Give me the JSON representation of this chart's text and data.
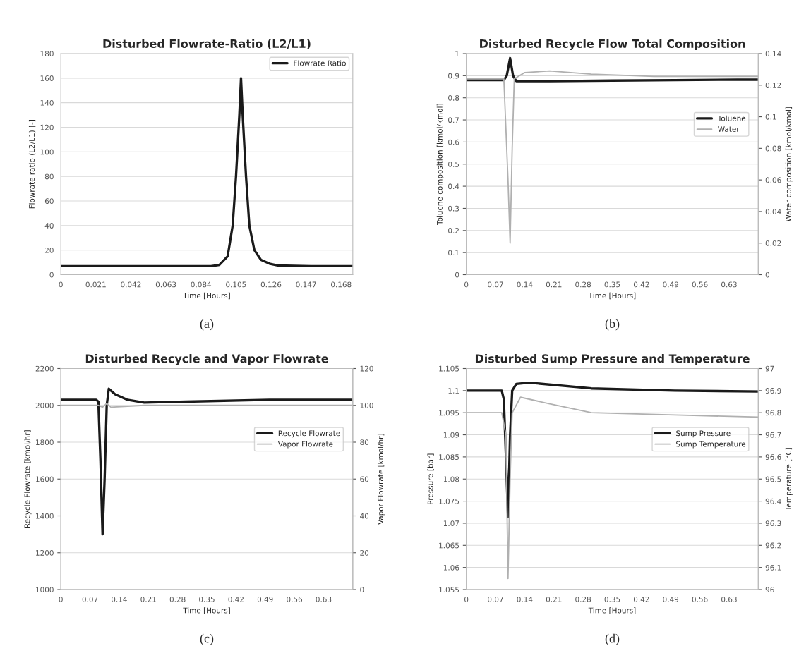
{
  "chart_data": [
    {
      "type": "line",
      "title": "Disturbed Flowrate-Ratio (L2/L1)",
      "xlabel": "Time [Hours]",
      "ylabel": "Flowrate ratio (L2/L1) [-]",
      "xlim": [
        0,
        0.175
      ],
      "xticks": [
        0,
        0.021,
        0.042,
        0.063,
        0.084,
        0.105,
        0.126,
        0.147,
        0.168
      ],
      "ylim": [
        0,
        180
      ],
      "yticks": [
        0,
        20,
        40,
        60,
        80,
        100,
        120,
        140,
        160,
        180
      ],
      "grid": "y",
      "legend": "top right",
      "annotations": [
        "(a)"
      ],
      "series": [
        {
          "name": "Flowrate Ratio",
          "color": "#1a1a1a",
          "x": [
            0,
            0.02,
            0.04,
            0.06,
            0.08,
            0.09,
            0.095,
            0.1,
            0.103,
            0.105,
            0.107,
            0.108,
            0.109,
            0.111,
            0.113,
            0.116,
            0.12,
            0.125,
            0.13,
            0.15,
            0.175
          ],
          "values": [
            7,
            7,
            7,
            7,
            7,
            7,
            8,
            15,
            40,
            80,
            130,
            160,
            130,
            80,
            40,
            20,
            12,
            9,
            7.5,
            7,
            7
          ]
        }
      ]
    },
    {
      "type": "line",
      "title": "Disturbed Recycle Flow Total Composition",
      "xlabel": "Time [Hours]",
      "ylabel": "Toluene composition [kmol/kmol]",
      "y2label": "Water composition [kmol/kmol]",
      "xlim": [
        0,
        0.7
      ],
      "xticks": [
        0,
        0.07,
        0.14,
        0.21,
        0.28,
        0.35,
        0.42,
        0.49,
        0.56,
        0.63
      ],
      "ylim": [
        0,
        1
      ],
      "yticks": [
        0,
        0.1,
        0.2,
        0.3,
        0.4,
        0.5,
        0.6,
        0.7,
        0.8,
        0.9,
        1
      ],
      "y2lim": [
        0,
        0.14
      ],
      "y2ticks": [
        0,
        0.02,
        0.04,
        0.06,
        0.08,
        0.1,
        0.12,
        0.14
      ],
      "grid": "y",
      "legend": "right",
      "annotations": [
        "(b)"
      ],
      "series": [
        {
          "name": "Toluene",
          "color": "#1a1a1a",
          "x": [
            0,
            0.09,
            0.097,
            0.105,
            0.112,
            0.12,
            0.2,
            0.35,
            0.5,
            0.65,
            0.7
          ],
          "values": [
            0.88,
            0.88,
            0.9,
            0.98,
            0.9,
            0.875,
            0.875,
            0.878,
            0.88,
            0.882,
            0.882
          ]
        },
        {
          "name": "Water",
          "color": "#b0b0b0",
          "axis": "y2",
          "x": [
            0,
            0.09,
            0.1,
            0.105,
            0.11,
            0.115,
            0.14,
            0.2,
            0.3,
            0.45,
            0.7
          ],
          "values": [
            0.124,
            0.124,
            0.06,
            0.02,
            0.08,
            0.124,
            0.128,
            0.129,
            0.127,
            0.1255,
            0.1255
          ]
        }
      ]
    },
    {
      "type": "line",
      "title": "Disturbed Recycle and Vapor Flowrate",
      "xlabel": "Time [Hours]",
      "ylabel": "Recycle Flowrate [kmol/hr]",
      "y2label": "Vapor Flowrate [kmol/hr]",
      "xlim": [
        0,
        0.7
      ],
      "xticks": [
        0,
        0.07,
        0.14,
        0.21,
        0.28,
        0.35,
        0.42,
        0.49,
        0.56,
        0.63
      ],
      "ylim": [
        1000,
        2200
      ],
      "yticks": [
        1000,
        1200,
        1400,
        1600,
        1800,
        2000,
        2200
      ],
      "y2lim": [
        0,
        120
      ],
      "y2ticks": [
        0,
        20,
        40,
        60,
        80,
        100,
        120
      ],
      "grid": "y",
      "legend": "right",
      "annotations": [
        "(c)"
      ],
      "series": [
        {
          "name": "Recycle Flowrate",
          "color": "#1a1a1a",
          "x": [
            0,
            0.085,
            0.09,
            0.095,
            0.1,
            0.105,
            0.11,
            0.115,
            0.13,
            0.16,
            0.2,
            0.3,
            0.5,
            0.7
          ],
          "values": [
            2030,
            2030,
            2020,
            1700,
            1300,
            1600,
            2000,
            2090,
            2060,
            2030,
            2015,
            2020,
            2030,
            2030
          ]
        },
        {
          "name": "Vapor Flowrate",
          "color": "#b0b0b0",
          "axis": "y2",
          "x": [
            0,
            0.09,
            0.1,
            0.11,
            0.12,
            0.2,
            0.7
          ],
          "values": [
            100,
            100,
            99,
            101,
            99,
            100,
            100
          ]
        }
      ]
    },
    {
      "type": "line",
      "title": "Disturbed Sump Pressure and Temperature",
      "xlabel": "Time [Hours]",
      "ylabel": "Pressure [bar]",
      "y2label": "Temperature [°C]",
      "xlim": [
        0,
        0.7
      ],
      "xticks": [
        0,
        0.07,
        0.14,
        0.21,
        0.28,
        0.35,
        0.42,
        0.49,
        0.56,
        0.63
      ],
      "ylim": [
        1.055,
        1.105
      ],
      "yticks": [
        1.055,
        1.06,
        1.065,
        1.07,
        1.075,
        1.08,
        1.085,
        1.09,
        1.095,
        1.1,
        1.105
      ],
      "y2lim": [
        96,
        97
      ],
      "y2ticks": [
        96,
        96.1,
        96.2,
        96.3,
        96.4,
        96.5,
        96.6,
        96.7,
        96.8,
        96.9,
        97
      ],
      "grid": "y",
      "legend": "right",
      "annotations": [
        "(d)"
      ],
      "series": [
        {
          "name": "Sump Pressure",
          "color": "#1a1a1a",
          "x": [
            0,
            0.085,
            0.09,
            0.095,
            0.1,
            0.105,
            0.11,
            0.12,
            0.15,
            0.3,
            0.5,
            0.7
          ],
          "values": [
            1.1,
            1.1,
            1.098,
            1.085,
            1.0715,
            1.09,
            1.1,
            1.1015,
            1.1018,
            1.1005,
            1.1,
            1.0998
          ]
        },
        {
          "name": "Sump Temperature",
          "color": "#b0b0b0",
          "axis": "y2",
          "x": [
            0,
            0.085,
            0.095,
            0.1,
            0.105,
            0.11,
            0.13,
            0.2,
            0.3,
            0.5,
            0.7
          ],
          "values": [
            96.8,
            96.8,
            96.7,
            96.05,
            96.5,
            96.8,
            96.87,
            96.84,
            96.8,
            96.79,
            96.78
          ]
        }
      ]
    }
  ]
}
